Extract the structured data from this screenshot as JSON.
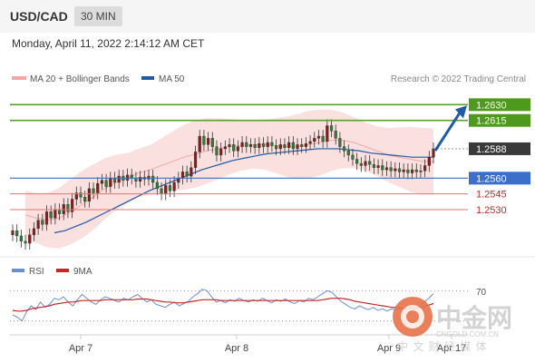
{
  "header": {
    "symbol": "USD/CAD",
    "timeframe": "30 MIN"
  },
  "datetime": "Monday, April 11, 2022 2:14:12 AM CET",
  "legend": {
    "bollinger_label": "MA 20 + Bollinger Bands",
    "ma50_label": "MA 50",
    "copyright": "Research © 2022 Trading Central"
  },
  "rsi_legend": {
    "rsi_label": "RSI",
    "ma_label": "9MA",
    "level_label": "70"
  },
  "xaxis": {
    "labels": [
      "Apr 7",
      "Apr 8",
      "Apr 9",
      "Apr 17"
    ]
  },
  "watermark": {
    "brand": "中金网",
    "domain": "CNGOLD.COM.CN",
    "tagline": "中 文 财 经 媒 体"
  },
  "colors": {
    "up": "#8b1a1a",
    "down": "#2e7d32",
    "bollinger": "#f4a6a6",
    "ma50": "#1f5aa6",
    "resistance": "#5aa02c",
    "support": "#3b6fc9",
    "support_light": "#e57373",
    "arrow": "#1f5aa6",
    "rsi": "#6a8fd4",
    "rsi_ma": "#c62828"
  },
  "chart_data": {
    "type": "candlestick",
    "pair": "USD/CAD",
    "interval": "30 MIN",
    "y_range": [
      1.2492,
      1.2645
    ],
    "current_price": 1.2588,
    "resistance_levels": [
      1.263,
      1.2615
    ],
    "support_levels": [
      1.256,
      1.2545,
      1.253
    ],
    "level_labels": [
      "1.2630",
      "1.2615",
      "1.2588",
      "1.2560",
      "1.2545",
      "1.2530"
    ],
    "pivot": 1.256,
    "x_categories": [
      "Apr 7",
      "Apr 8",
      "Apr 9",
      "Apr 17"
    ],
    "ohlc_close": [
      1.251,
      1.2505,
      1.25,
      1.2498,
      1.2506,
      1.2512,
      1.252,
      1.2516,
      1.2528,
      1.2522,
      1.253,
      1.2526,
      1.2535,
      1.2528,
      1.254,
      1.2546,
      1.2542,
      1.2538,
      1.255,
      1.2546,
      1.2555,
      1.2558,
      1.2552,
      1.256,
      1.2556,
      1.2562,
      1.2558,
      1.2563,
      1.256,
      1.2557,
      1.2561,
      1.2559,
      1.2562,
      1.2556,
      1.255,
      1.2545,
      1.2553,
      1.2548,
      1.2556,
      1.256,
      1.2566,
      1.2562,
      1.257,
      1.2585,
      1.26,
      1.2592,
      1.2598,
      1.259,
      1.2582,
      1.2588,
      1.259,
      1.2592,
      1.2586,
      1.259,
      1.2594,
      1.259,
      1.2592,
      1.2589,
      1.2593,
      1.259,
      1.2594,
      1.2591,
      1.2588,
      1.2592,
      1.2589,
      1.2594,
      1.2588,
      1.2592,
      1.259,
      1.2593,
      1.2595,
      1.2598,
      1.26,
      1.2595,
      1.261,
      1.2605,
      1.2598,
      1.259,
      1.2586,
      1.2582,
      1.2578,
      1.2574,
      1.2572,
      1.2576,
      1.2573,
      1.257,
      1.2572,
      1.2568,
      1.257,
      1.2567,
      1.2569,
      1.2566,
      1.2568,
      1.2565,
      1.2568,
      1.2566,
      1.2567,
      1.2572,
      1.258,
      1.2588
    ],
    "bollinger_mid": [
      1.2525,
      1.2522,
      1.252,
      1.2522,
      1.2528,
      1.2535,
      1.2542,
      1.255,
      1.2556,
      1.256,
      1.2565,
      1.2568,
      1.2572,
      1.2576,
      1.258,
      1.2583,
      1.2586,
      1.2588,
      1.259,
      1.2591,
      1.2592,
      1.2592,
      1.2591,
      1.259,
      1.259,
      1.2592,
      1.2594,
      1.2596,
      1.2596,
      1.2594,
      1.259,
      1.2586,
      1.2582,
      1.258,
      1.2578,
      1.2576,
      1.2576
    ],
    "ma50": [
      1.2508,
      1.251,
      1.2514,
      1.2518,
      1.2523,
      1.2528,
      1.2533,
      1.2538,
      1.2543,
      1.2548,
      1.2552,
      1.2556,
      1.256,
      1.2564,
      1.2568,
      1.2571,
      1.2574,
      1.2577,
      1.2579,
      1.2581,
      1.2583,
      1.2584,
      1.2585,
      1.2586,
      1.2587,
      1.2588,
      1.2588,
      1.2588,
      1.2587,
      1.2586,
      1.2584,
      1.2583,
      1.2582,
      1.2581,
      1.258,
      1.258,
      1.258
    ],
    "rsi": [
      38,
      35,
      30,
      42,
      50,
      45,
      55,
      48,
      52,
      60,
      58,
      62,
      55,
      50,
      58,
      65,
      60,
      55,
      52,
      58,
      62,
      60,
      57,
      55,
      60,
      58,
      62,
      65,
      60,
      55,
      58,
      52,
      50,
      48,
      52,
      55,
      50,
      53,
      56,
      62,
      66,
      72,
      70,
      62,
      55,
      57,
      54,
      58,
      56,
      60,
      57,
      55,
      58,
      56,
      60,
      57,
      54,
      58,
      56,
      59,
      55,
      53,
      57,
      55,
      60,
      58,
      62,
      66,
      70,
      68,
      62,
      56,
      52,
      48,
      46,
      50,
      47,
      45,
      48,
      44,
      46,
      43,
      46,
      44,
      47,
      45,
      48,
      46,
      50,
      55,
      60,
      66
    ],
    "rsi_ma": [
      44,
      43,
      43,
      44,
      46,
      47,
      48,
      49,
      50,
      52,
      53,
      54,
      55,
      55,
      56,
      57,
      57,
      57,
      57,
      57,
      58,
      58,
      58,
      58,
      58,
      58,
      58,
      59,
      59,
      59,
      58,
      57,
      56,
      55,
      55,
      54,
      54,
      54,
      55,
      56,
      57,
      58,
      58,
      58,
      58,
      57,
      57,
      57,
      57,
      57,
      57,
      57,
      57,
      57,
      57,
      57,
      57,
      57,
      57,
      57,
      57,
      57,
      57,
      57,
      57,
      57,
      57,
      58,
      59,
      60,
      60,
      60,
      59,
      58,
      56,
      55,
      54,
      53,
      52,
      51,
      50,
      49,
      48,
      48,
      47,
      47,
      47,
      47,
      48,
      49,
      51,
      53
    ],
    "rsi_levels": [
      70
    ],
    "projection_target": 1.263
  }
}
